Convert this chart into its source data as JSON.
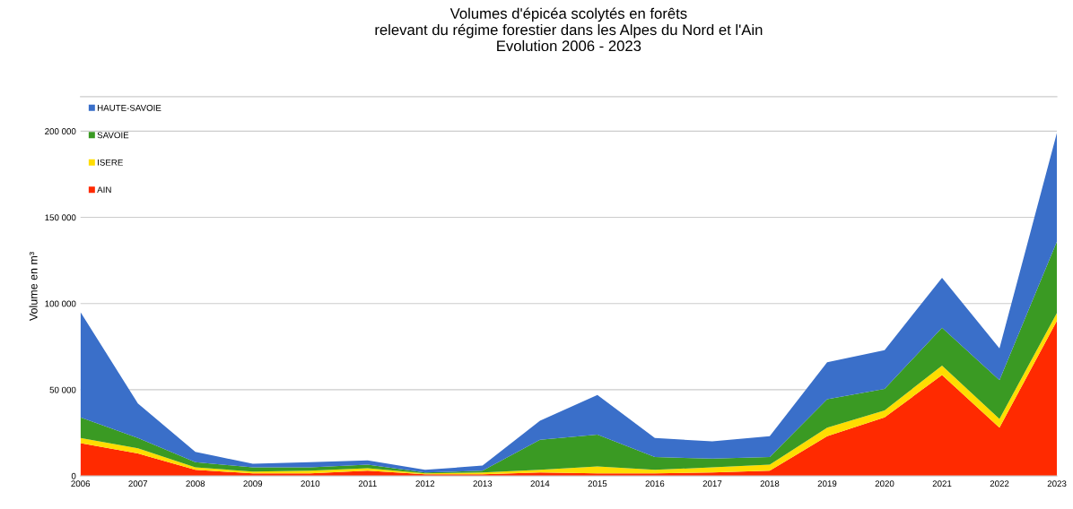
{
  "chart_data": {
    "type": "area",
    "stacked": true,
    "title": "Volumes d'épicéa scolytés en forêts\nrelevant du régime forestier dans les Alpes du Nord et l'Ain\nEvolution 2006 - 2023",
    "ylabel": "Volume en m³",
    "categories": [
      "2006",
      "2007",
      "2008",
      "2009",
      "2010",
      "2011",
      "2012",
      "2013",
      "2014",
      "2015",
      "2016",
      "2017",
      "2018",
      "2019",
      "2020",
      "2021",
      "2022",
      "2023"
    ],
    "series": [
      {
        "name": "AIN",
        "color": "#ff2a00",
        "values": [
          19000,
          13000,
          3500,
          1500,
          1500,
          3000,
          1000,
          1000,
          2000,
          1500,
          1500,
          2000,
          3000,
          23000,
          34000,
          58500,
          28000,
          90000
        ]
      },
      {
        "name": "ISERE",
        "color": "#ffdd00",
        "values": [
          3000,
          3000,
          1500,
          1000,
          1500,
          1500,
          500,
          1000,
          1500,
          4000,
          2000,
          3000,
          3500,
          5000,
          4000,
          5500,
          5000,
          4500
        ]
      },
      {
        "name": "SAVOIE",
        "color": "#3a9a23",
        "values": [
          12000,
          6000,
          3000,
          2500,
          2000,
          2000,
          500,
          1000,
          17500,
          18500,
          7500,
          5000,
          4500,
          16500,
          12500,
          22000,
          22500,
          41500
        ]
      },
      {
        "name": "HAUTE-SAVOIE",
        "color": "#3a6fc9",
        "values": [
          61000,
          20000,
          6000,
          2000,
          3000,
          2500,
          1500,
          3000,
          11000,
          23000,
          11000,
          10000,
          12000,
          21500,
          22500,
          29000,
          18500,
          63000
        ]
      }
    ],
    "ylim": [
      0,
      220000
    ],
    "yticks": [
      0,
      {
        "value": 50000,
        "label": "50 000"
      },
      {
        "value": 100000,
        "label": "100 000"
      },
      {
        "value": 150000,
        "label": "150 000"
      },
      {
        "value": 200000,
        "label": "200 000"
      }
    ],
    "grid": "y",
    "legend": "top left"
  }
}
